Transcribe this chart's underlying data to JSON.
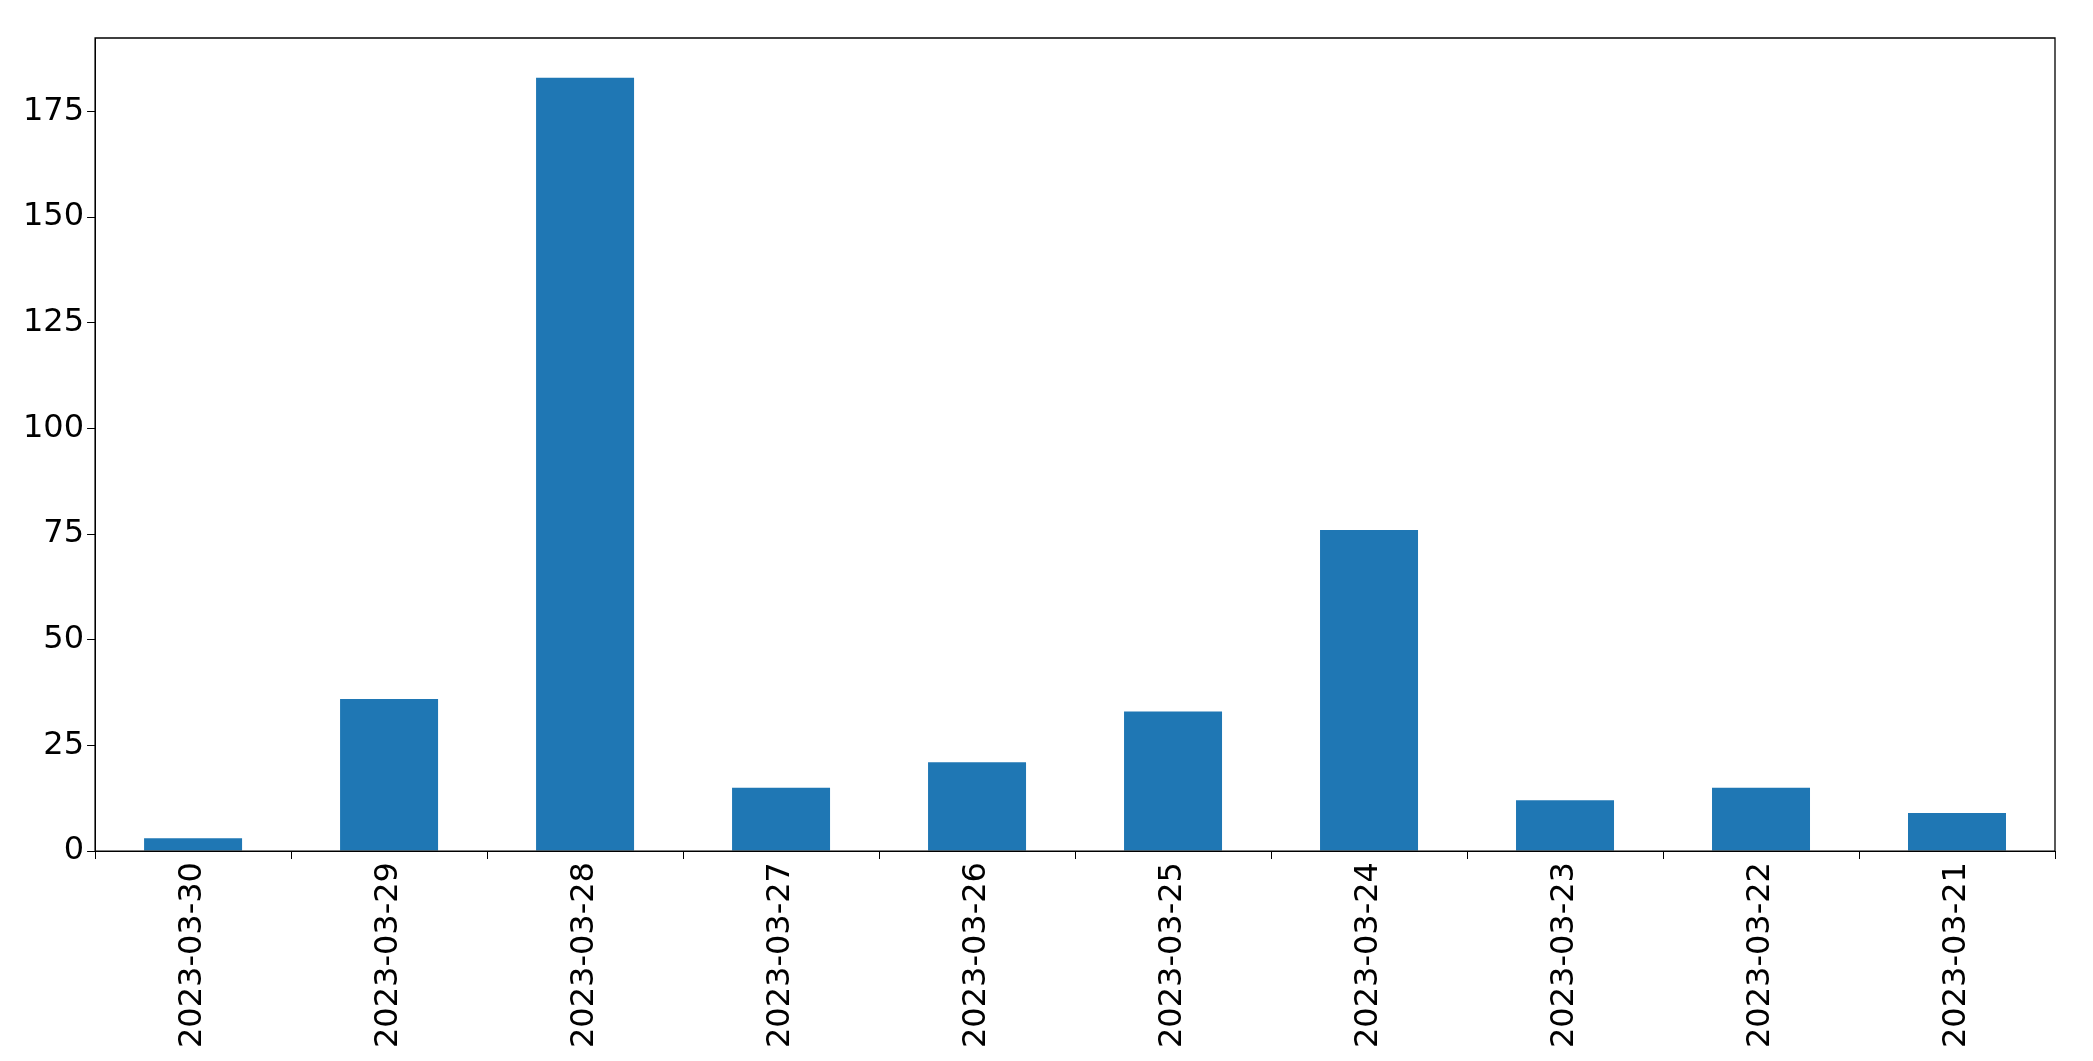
{
  "chart_data": {
    "type": "bar",
    "categories": [
      "2023-03-30",
      "2023-03-29",
      "2023-03-28",
      "2023-03-27",
      "2023-03-26",
      "2023-03-25",
      "2023-03-24",
      "2023-03-23",
      "2023-03-22",
      "2023-03-21"
    ],
    "values": [
      3,
      36,
      183,
      15,
      21,
      33,
      76,
      12,
      15,
      9
    ],
    "color": "#1f77b4",
    "ylim": [
      0,
      192.4
    ],
    "yticks": [
      0,
      25,
      50,
      75,
      100,
      125,
      150,
      175
    ],
    "grid": false,
    "legend": false
  }
}
